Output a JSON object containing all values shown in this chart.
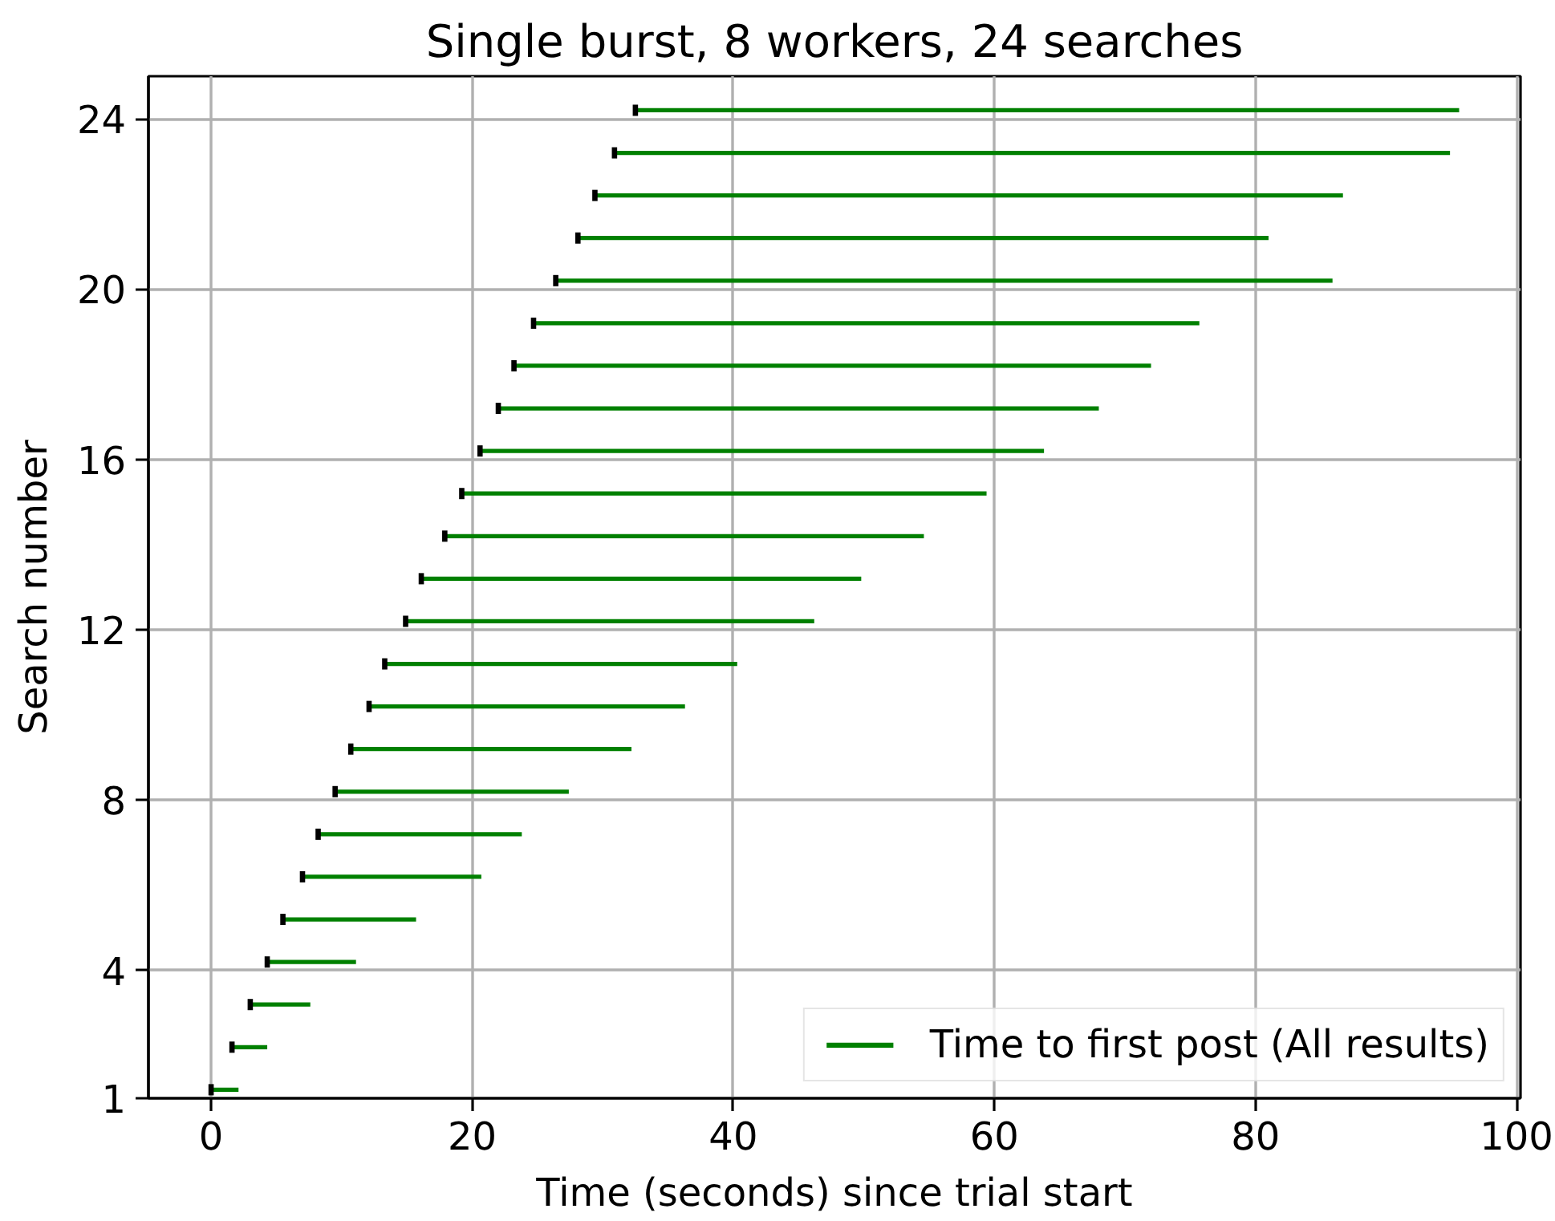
{
  "chart_data": {
    "type": "bar",
    "orientation": "horizontal",
    "title": "Single burst, 8 workers, 24 searches",
    "xlabel": "Time (seconds) since trial start",
    "ylabel": "Search number",
    "x": [
      1.2,
      2.2,
      3.2,
      4.2,
      5.2,
      6.2,
      7.2,
      8.2,
      9.2,
      10.2,
      11.2,
      12.2,
      13.2,
      14.2,
      15.2,
      16.2,
      17.2,
      18.2,
      19.2,
      20.2,
      21.2,
      22.2,
      23.2,
      24.2
    ],
    "xlim": [
      -4.8,
      100.3
    ],
    "xticks": [
      0,
      20,
      40,
      60,
      80,
      100
    ],
    "ylim": [
      1,
      25
    ],
    "yticks": [
      1,
      4,
      8,
      12,
      16,
      20,
      24
    ],
    "grid": true,
    "legend": "bottom right",
    "series": [
      {
        "name": "Time to first post (All results)",
        "color": "#008000",
        "base": [
          0.0,
          1.6,
          3.0,
          4.3,
          5.5,
          7.0,
          8.2,
          9.5,
          10.7,
          12.1,
          13.3,
          14.9,
          16.1,
          17.9,
          19.2,
          20.6,
          22.0,
          23.2,
          24.7,
          26.4,
          28.1,
          29.4,
          30.9,
          32.5
        ],
        "values": [
          2.1,
          2.7,
          4.6,
          6.8,
          10.2,
          13.7,
          15.6,
          17.9,
          21.5,
          24.2,
          27.0,
          31.3,
          33.7,
          36.7,
          40.2,
          43.2,
          46.0,
          48.8,
          51.0,
          59.5,
          52.9,
          57.3,
          64.0,
          63.1
        ]
      },
      {
        "type": "scatter",
        "color": "#000000",
        "values": [
          0.0,
          1.6,
          3.0,
          4.3,
          5.5,
          7.0,
          8.2,
          9.5,
          10.7,
          12.1,
          13.3,
          14.9,
          16.1,
          17.9,
          19.2,
          20.6,
          22.0,
          23.2,
          24.7,
          26.4,
          28.1,
          29.4,
          30.9,
          32.5
        ]
      }
    ]
  }
}
